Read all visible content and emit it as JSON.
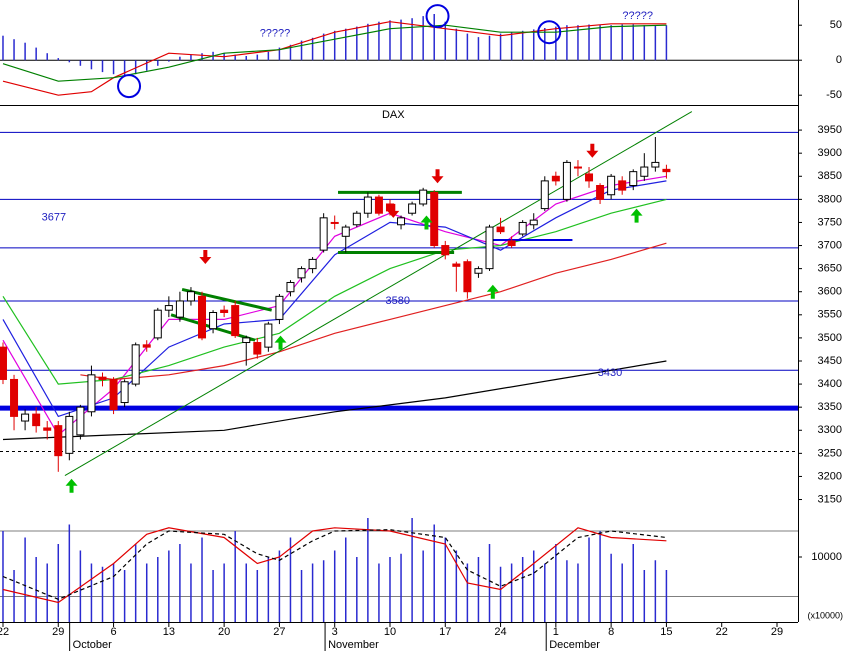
{
  "chart_data": [
    {
      "type": "macd",
      "ylim": [
        -64,
        86
      ],
      "yticks": [
        50,
        0,
        -50
      ],
      "histogram": {
        "color": "#2a2ad0",
        "values": [
          35,
          30,
          25,
          18,
          10,
          3,
          -3,
          -8,
          -13,
          -17,
          -20,
          -22,
          -20,
          -15,
          -8,
          -2,
          5,
          8,
          10,
          12,
          10,
          8,
          6,
          8,
          12,
          18,
          22,
          28,
          32,
          38,
          42,
          45,
          48,
          52,
          55,
          57,
          58,
          60,
          63,
          66,
          55,
          45,
          38,
          33,
          35,
          38,
          40,
          42,
          44,
          46,
          48,
          50,
          50,
          51,
          50,
          50,
          51,
          51,
          50,
          50,
          50
        ]
      },
      "series": [
        {
          "color": "#e00000",
          "x": [
            0,
            5,
            8,
            10,
            15,
            20,
            25,
            30,
            35,
            40,
            45,
            50,
            55,
            60
          ],
          "values": [
            -30,
            -50,
            -45,
            -25,
            10,
            5,
            15,
            40,
            55,
            45,
            35,
            45,
            52,
            52
          ]
        },
        {
          "color": "#008000",
          "x": [
            0,
            5,
            10,
            15,
            20,
            25,
            30,
            35,
            40,
            45,
            50,
            55,
            60
          ],
          "values": [
            -5,
            -30,
            -25,
            -10,
            10,
            15,
            30,
            45,
            50,
            40,
            40,
            48,
            50
          ]
        }
      ],
      "circles": [
        {
          "x": 11.4,
          "y": -37
        },
        {
          "x": 39.3,
          "y": 63
        },
        {
          "x": 49.4,
          "y": 40
        }
      ],
      "circle_color": "#0000e0",
      "annotations": [
        {
          "x": 24.6,
          "y": 38,
          "text": "?????"
        },
        {
          "x": 57.4,
          "y": 63,
          "text": "?????"
        }
      ]
    },
    {
      "type": "candlestick",
      "title": "DAX",
      "ylim": [
        3110,
        4000
      ],
      "yticks": [
        3150,
        3200,
        3250,
        3300,
        3350,
        3400,
        3450,
        3500,
        3550,
        3600,
        3650,
        3700,
        3750,
        3800,
        3850,
        3900,
        3950
      ],
      "up_color": "#ffffff",
      "down_color": "#e00000",
      "open": [
        3480,
        3410,
        3320,
        3335,
        3305,
        3310,
        3250,
        3290,
        3340,
        3415,
        3410,
        3360,
        3400,
        3485,
        3500,
        3560,
        3545,
        3580,
        3590,
        3520,
        3560,
        3570,
        3490,
        3490,
        3480,
        3540,
        3600,
        3630,
        3650,
        3690,
        3750,
        3720,
        3745,
        3770,
        3805,
        3790,
        3745,
        3770,
        3790,
        3815,
        3700,
        3660,
        3665,
        3640,
        3650,
        3740,
        3710,
        3725,
        3745,
        3780,
        3850,
        3800,
        3870,
        3855,
        3830,
        3810,
        3840,
        3830,
        3850,
        3870,
        3865
      ],
      "high": [
        3490,
        3420,
        3345,
        3350,
        3320,
        3320,
        3340,
        3355,
        3440,
        3425,
        3415,
        3410,
        3490,
        3495,
        3565,
        3590,
        3600,
        3610,
        3600,
        3560,
        3570,
        3580,
        3505,
        3500,
        3535,
        3595,
        3625,
        3655,
        3675,
        3770,
        3765,
        3745,
        3775,
        3815,
        3810,
        3800,
        3765,
        3795,
        3825,
        3820,
        3710,
        3665,
        3670,
        3655,
        3745,
        3760,
        3720,
        3755,
        3770,
        3850,
        3860,
        3885,
        3885,
        3870,
        3835,
        3855,
        3850,
        3865,
        3900,
        3935,
        3875
      ],
      "low": [
        3400,
        3300,
        3300,
        3295,
        3280,
        3210,
        3235,
        3280,
        3330,
        3395,
        3335,
        3350,
        3395,
        3470,
        3495,
        3545,
        3535,
        3570,
        3495,
        3510,
        3545,
        3500,
        3440,
        3455,
        3470,
        3530,
        3590,
        3620,
        3640,
        3685,
        3735,
        3685,
        3740,
        3760,
        3765,
        3765,
        3735,
        3765,
        3785,
        3695,
        3670,
        3600,
        3585,
        3630,
        3645,
        3725,
        3695,
        3720,
        3735,
        3775,
        3830,
        3795,
        3850,
        3825,
        3790,
        3800,
        3810,
        3820,
        3840,
        3860,
        3845
      ],
      "close": [
        3410,
        3330,
        3335,
        3310,
        3300,
        3245,
        3330,
        3350,
        3420,
        3410,
        3345,
        3405,
        3485,
        3480,
        3560,
        3570,
        3580,
        3600,
        3500,
        3555,
        3555,
        3505,
        3500,
        3465,
        3530,
        3590,
        3620,
        3650,
        3670,
        3760,
        3748,
        3740,
        3770,
        3805,
        3770,
        3775,
        3760,
        3790,
        3820,
        3700,
        3680,
        3655,
        3600,
        3650,
        3740,
        3730,
        3700,
        3750,
        3755,
        3840,
        3840,
        3880,
        3868,
        3840,
        3800,
        3850,
        3820,
        3860,
        3870,
        3880,
        3860
      ],
      "series": [
        {
          "color": "#e000e0",
          "x": [
            0,
            5,
            10,
            15,
            20,
            25,
            30,
            35,
            40,
            45,
            50,
            55,
            60
          ],
          "values": [
            3495,
            3290,
            3390,
            3540,
            3540,
            3570,
            3720,
            3770,
            3730,
            3700,
            3790,
            3830,
            3850
          ]
        },
        {
          "color": "#2020e0",
          "x": [
            0,
            5,
            10,
            15,
            20,
            25,
            30,
            35,
            40,
            45,
            50,
            55,
            60
          ],
          "values": [
            3540,
            3330,
            3370,
            3480,
            3530,
            3540,
            3680,
            3750,
            3740,
            3690,
            3760,
            3820,
            3840
          ]
        },
        {
          "color": "#20c020",
          "x": [
            0,
            5,
            10,
            15,
            20,
            25,
            30,
            35,
            40,
            45,
            50,
            55,
            60
          ],
          "values": [
            3590,
            3400,
            3410,
            3440,
            3480,
            3510,
            3590,
            3650,
            3690,
            3700,
            3730,
            3770,
            3800
          ]
        },
        {
          "color": "#e02020",
          "x": [
            7,
            10,
            15,
            20,
            25,
            30,
            35,
            40,
            45,
            50,
            55,
            60
          ],
          "values": [
            3420,
            3410,
            3420,
            3440,
            3470,
            3510,
            3540,
            3570,
            3600,
            3640,
            3670,
            3705
          ]
        },
        {
          "color": "#000000",
          "x": [
            0,
            10,
            20,
            30,
            40,
            50,
            60
          ],
          "values": [
            3280,
            3290,
            3300,
            3340,
            3370,
            3410,
            3450
          ]
        }
      ],
      "levels": [
        {
          "value": 3945,
          "color": "#0000c0",
          "width": 1
        },
        {
          "value": 3800,
          "color": "#0000c0",
          "width": 1
        },
        {
          "value": 3695,
          "color": "#0000c0",
          "width": 1
        },
        {
          "value": 3580,
          "color": "#0000c0",
          "width": 1
        },
        {
          "value": 3430,
          "color": "#0000c0",
          "width": 1
        },
        {
          "value": 3348,
          "color": "#0000e0",
          "width": 5
        },
        {
          "value": 3254,
          "color": "#000000",
          "width": 1,
          "dash": true
        }
      ],
      "lines": [
        {
          "x": [
            5.6,
            62.3
          ],
          "y": [
            3202,
            3990
          ],
          "color": "#008000",
          "width": 1
        },
        {
          "x": [
            30.3,
            41.5
          ],
          "y": [
            3815,
            3815
          ],
          "color": "#008000",
          "width": 3
        },
        {
          "x": [
            30.3,
            40.8
          ],
          "y": [
            3685,
            3685
          ],
          "color": "#008000",
          "width": 3
        },
        {
          "x": [
            16.2,
            24.3
          ],
          "y": [
            3605,
            3560
          ],
          "color": "#008000",
          "width": 3
        },
        {
          "x": [
            15.2,
            22.8
          ],
          "y": [
            3550,
            3495
          ],
          "color": "#008000",
          "width": 3
        },
        {
          "x": [
            44.0,
            51.5
          ],
          "y": [
            3712,
            3712
          ],
          "color": "#0000e0",
          "width": 2
        }
      ],
      "arrows": [
        {
          "x": 6.2,
          "y": 3195,
          "dir": "up",
          "color": "#00c000"
        },
        {
          "x": 25.1,
          "y": 3505,
          "dir": "up",
          "color": "#00c000"
        },
        {
          "x": 38.3,
          "y": 3765,
          "dir": "up",
          "color": "#00c000"
        },
        {
          "x": 44.3,
          "y": 3615,
          "dir": "up",
          "color": "#00c000"
        },
        {
          "x": 57.3,
          "y": 3780,
          "dir": "up",
          "color": "#00c000"
        },
        {
          "x": 18.3,
          "y": 3660,
          "dir": "down",
          "color": "#e00000"
        },
        {
          "x": 35.3,
          "y": 3760,
          "dir": "down",
          "color": "#e00000"
        },
        {
          "x": 39.3,
          "y": 3835,
          "dir": "down",
          "color": "#e00000"
        },
        {
          "x": 53.3,
          "y": 3890,
          "dir": "down",
          "color": "#e00000"
        }
      ],
      "annotations": [
        {
          "x": 4.6,
          "y": 3761,
          "text": "3677"
        },
        {
          "x": 35.7,
          "y": 3580,
          "text": "3580"
        },
        {
          "x": 54.9,
          "y": 3424,
          "text": "3430"
        }
      ]
    },
    {
      "type": "volume",
      "ylim": [
        0,
        16000
      ],
      "yticks": [
        10000
      ],
      "unit_label": "(x10000)",
      "color": "#2a2ad0",
      "values": [
        14000,
        8000,
        13000,
        10000,
        9000,
        12000,
        15000,
        11000,
        9000,
        8500,
        9000,
        8000,
        12000,
        9000,
        10000,
        11000,
        12000,
        9000,
        13000,
        8000,
        9000,
        14000,
        9000,
        8000,
        10000,
        11000,
        13000,
        8000,
        9000,
        9500,
        11000,
        13000,
        10000,
        16000,
        9000,
        10000,
        10500,
        16000,
        11000,
        15000,
        13000,
        11000,
        9000,
        10000,
        12000,
        8500,
        9000,
        10000,
        11000,
        9000,
        12000,
        9500,
        9000,
        13000,
        14000,
        10500,
        9000,
        12000,
        8000,
        9500,
        8000
      ],
      "series": [
        {
          "color": "#e00000",
          "dash": false,
          "x": [
            0,
            5,
            10,
            13,
            15,
            20,
            23,
            25,
            28,
            30,
            35,
            40,
            42,
            45,
            48,
            52,
            55,
            60
          ],
          "values": [
            5000,
            3000,
            9000,
            13500,
            14500,
            13000,
            9000,
            10000,
            14000,
            14500,
            14000,
            12000,
            6000,
            5000,
            9000,
            14500,
            13000,
            12500
          ]
        },
        {
          "color": "#000000",
          "dash": true,
          "x": [
            0,
            5,
            10,
            13,
            15,
            20,
            23,
            25,
            28,
            30,
            35,
            40,
            42,
            45,
            48,
            52,
            55,
            60
          ],
          "values": [
            7000,
            3500,
            7000,
            12000,
            14000,
            13500,
            10500,
            9500,
            12500,
            14000,
            14200,
            13000,
            8000,
            5500,
            7500,
            13000,
            14000,
            13000
          ]
        }
      ],
      "xlim": [
        -0.27,
        71.9
      ],
      "xticks": [
        {
          "value": 0,
          "label": "22"
        },
        {
          "value": 5,
          "label": "29"
        },
        {
          "value": 10,
          "label": "6"
        },
        {
          "value": 15,
          "label": "13"
        },
        {
          "value": 20,
          "label": "20"
        },
        {
          "value": 25,
          "label": "27"
        },
        {
          "value": 30,
          "label": "3"
        },
        {
          "value": 35,
          "label": "10"
        },
        {
          "value": 40,
          "label": "17"
        },
        {
          "value": 45,
          "label": "24"
        },
        {
          "value": 50,
          "label": "1"
        },
        {
          "value": 55,
          "label": "8"
        },
        {
          "value": 60,
          "label": "15"
        },
        {
          "value": 65,
          "label": "22"
        },
        {
          "value": 70,
          "label": "29"
        }
      ],
      "months": [
        {
          "x": 6.3,
          "label": "October"
        },
        {
          "x": 29.4,
          "label": "November"
        },
        {
          "x": 49.4,
          "label": "December"
        }
      ]
    }
  ]
}
